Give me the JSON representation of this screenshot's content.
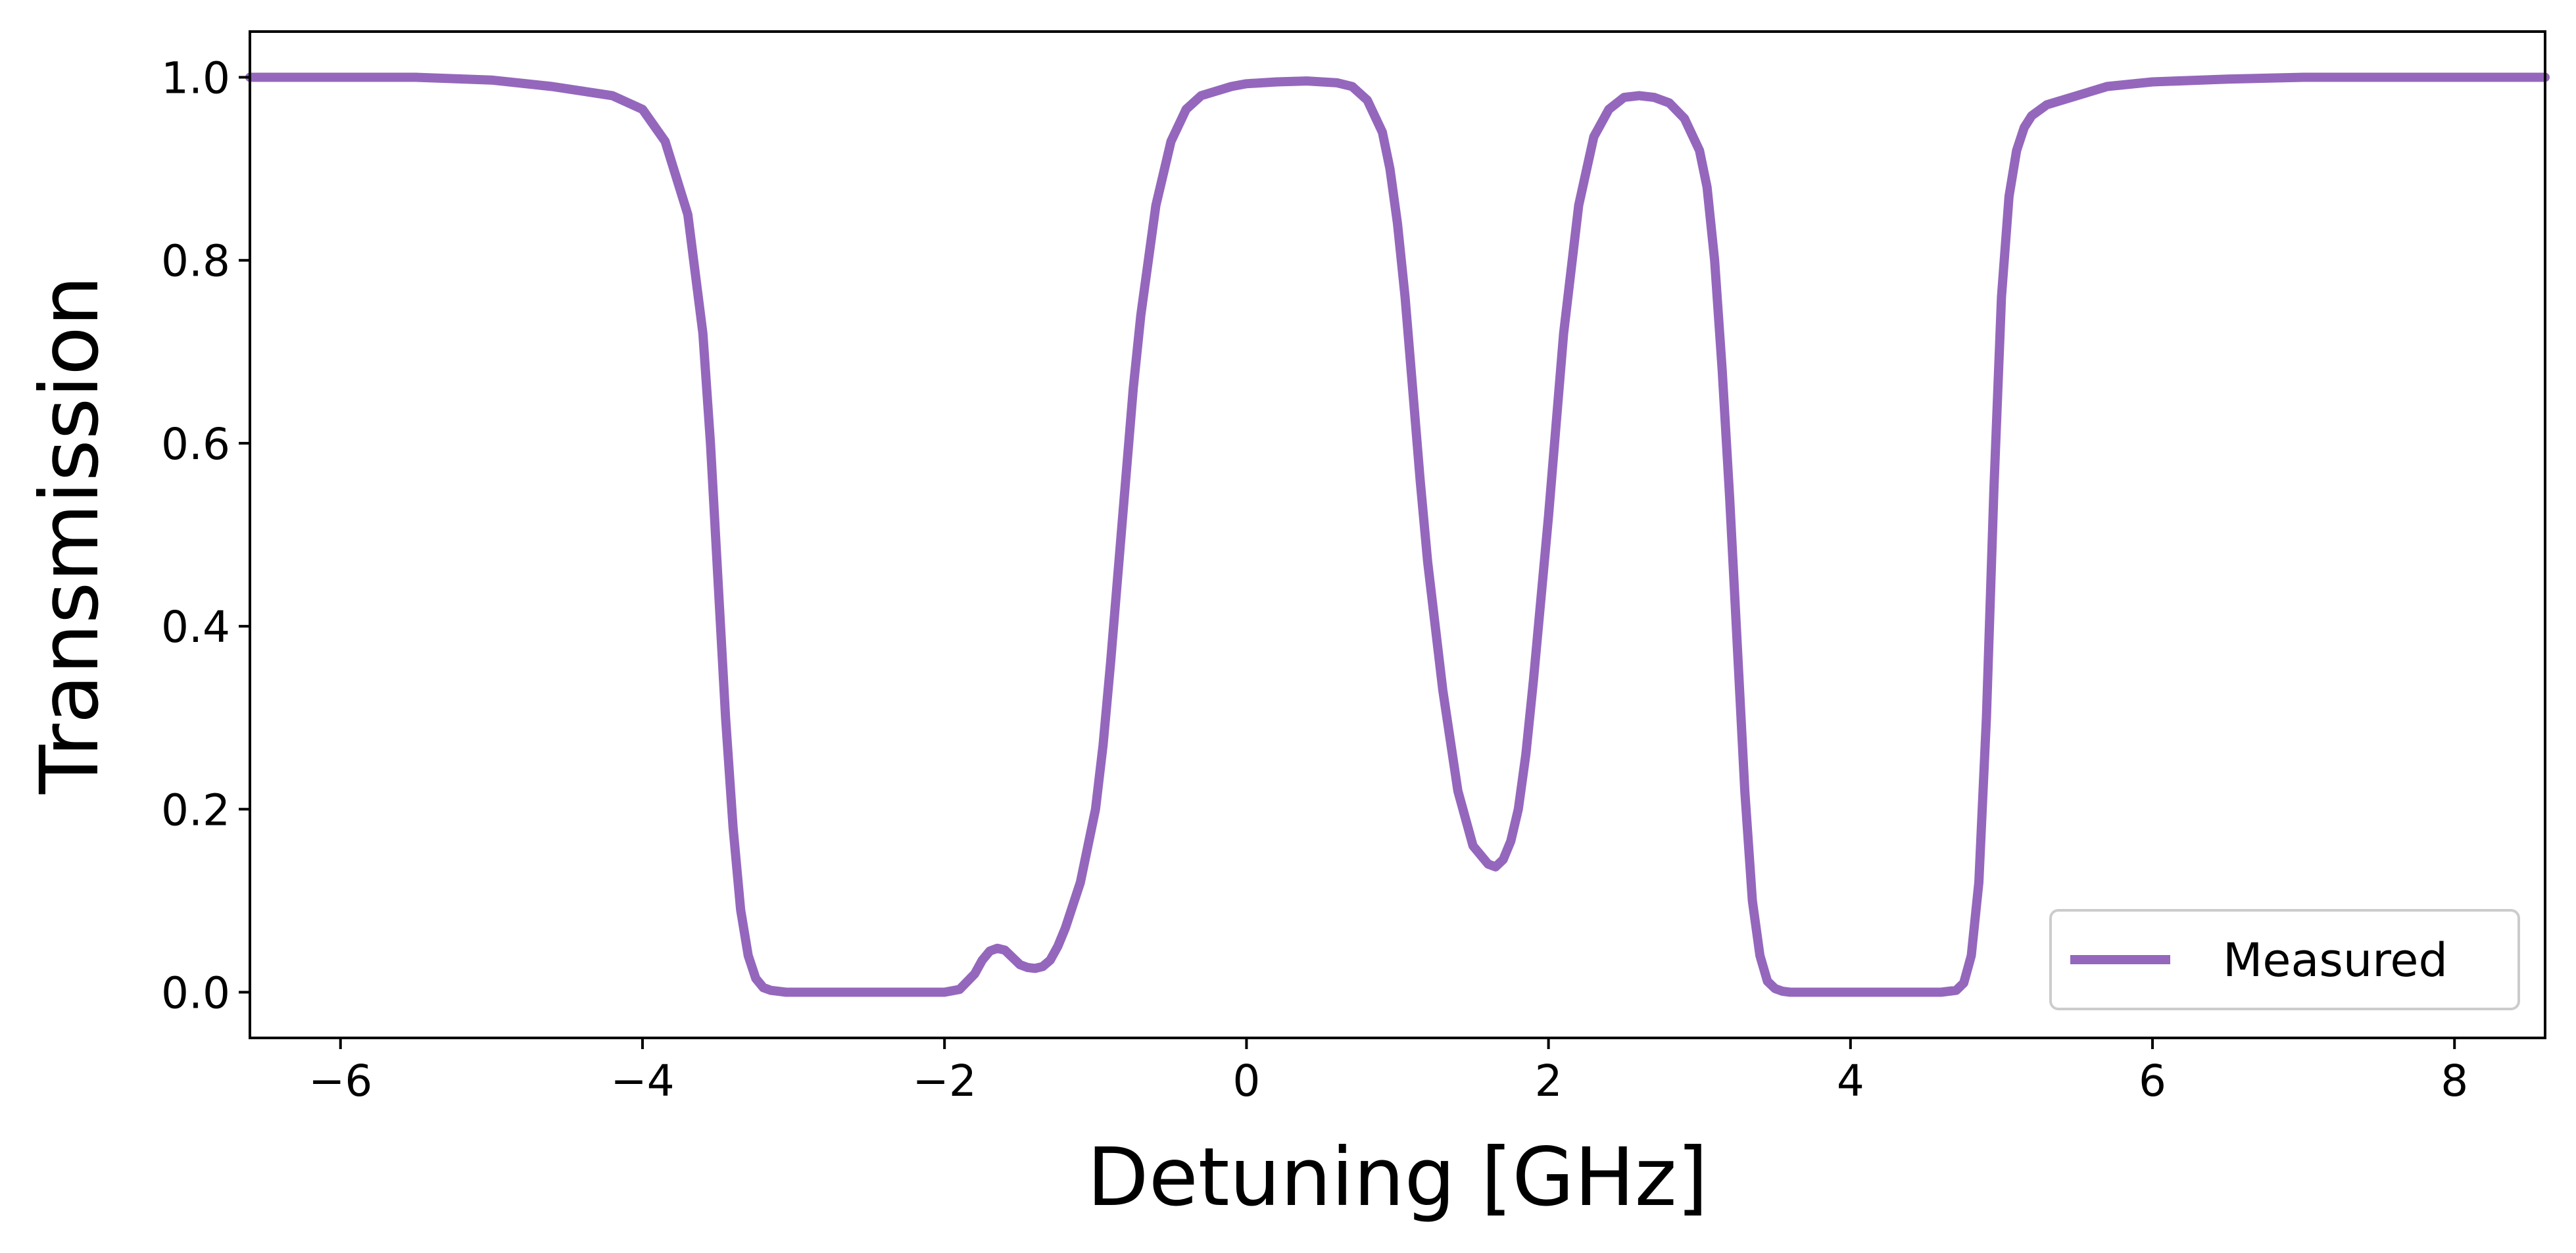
{
  "chart_data": {
    "type": "line",
    "title": "",
    "xlabel": "Detuning [GHz]",
    "ylabel": "Transmission",
    "xlim": [
      -6.6,
      8.6
    ],
    "ylim": [
      -0.05,
      1.05
    ],
    "xticks": [
      -6,
      -4,
      -2,
      0,
      2,
      4,
      6,
      8
    ],
    "xtick_labels": [
      "−6",
      "−4",
      "−2",
      "0",
      "2",
      "4",
      "6",
      "8"
    ],
    "yticks": [
      0.0,
      0.2,
      0.4,
      0.6,
      0.8,
      1.0
    ],
    "ytick_labels": [
      "0.0",
      "0.2",
      "0.4",
      "0.6",
      "0.8",
      "1.0"
    ],
    "grid": false,
    "legend": {
      "position": "lower-right",
      "entries": [
        "Measured"
      ]
    },
    "series": [
      {
        "name": "Measured",
        "color": "#9467bd",
        "x": [
          -6.6,
          -6.0,
          -5.5,
          -5.0,
          -4.6,
          -4.2,
          -4.0,
          -3.85,
          -3.7,
          -3.6,
          -3.55,
          -3.5,
          -3.45,
          -3.4,
          -3.35,
          -3.3,
          -3.25,
          -3.2,
          -3.15,
          -3.1,
          -3.05,
          -3.0,
          -2.5,
          -2.0,
          -1.9,
          -1.8,
          -1.75,
          -1.7,
          -1.65,
          -1.6,
          -1.55,
          -1.5,
          -1.45,
          -1.4,
          -1.35,
          -1.3,
          -1.25,
          -1.2,
          -1.1,
          -1.0,
          -0.95,
          -0.9,
          -0.85,
          -0.8,
          -0.75,
          -0.7,
          -0.6,
          -0.5,
          -0.4,
          -0.3,
          -0.2,
          -0.1,
          0.0,
          0.2,
          0.4,
          0.6,
          0.7,
          0.8,
          0.9,
          0.95,
          1.0,
          1.05,
          1.1,
          1.15,
          1.2,
          1.3,
          1.4,
          1.5,
          1.6,
          1.65,
          1.7,
          1.75,
          1.8,
          1.85,
          1.9,
          2.0,
          2.1,
          2.2,
          2.3,
          2.4,
          2.5,
          2.6,
          2.7,
          2.8,
          2.9,
          3.0,
          3.05,
          3.1,
          3.15,
          3.2,
          3.25,
          3.3,
          3.35,
          3.4,
          3.45,
          3.5,
          3.55,
          3.6,
          3.65,
          3.7,
          4.0,
          4.3,
          4.6,
          4.7,
          4.75,
          4.8,
          4.85,
          4.9,
          4.95,
          5.0,
          5.05,
          5.1,
          5.15,
          5.2,
          5.3,
          5.5,
          5.7,
          6.0,
          6.5,
          7.0,
          7.5,
          8.0,
          8.6
        ],
        "y": [
          1.0,
          1.0,
          1.0,
          0.997,
          0.99,
          0.98,
          0.965,
          0.93,
          0.85,
          0.72,
          0.6,
          0.45,
          0.3,
          0.18,
          0.09,
          0.04,
          0.015,
          0.005,
          0.002,
          0.001,
          0.0,
          0.0,
          0.0,
          0.0,
          0.003,
          0.02,
          0.035,
          0.045,
          0.048,
          0.046,
          0.038,
          0.03,
          0.027,
          0.026,
          0.028,
          0.035,
          0.05,
          0.07,
          0.12,
          0.2,
          0.27,
          0.36,
          0.46,
          0.56,
          0.66,
          0.74,
          0.86,
          0.93,
          0.965,
          0.98,
          0.985,
          0.99,
          0.993,
          0.995,
          0.996,
          0.994,
          0.99,
          0.975,
          0.94,
          0.9,
          0.84,
          0.76,
          0.66,
          0.56,
          0.47,
          0.33,
          0.22,
          0.16,
          0.14,
          0.137,
          0.145,
          0.165,
          0.2,
          0.26,
          0.34,
          0.52,
          0.72,
          0.86,
          0.935,
          0.965,
          0.978,
          0.98,
          0.978,
          0.972,
          0.955,
          0.92,
          0.88,
          0.8,
          0.68,
          0.54,
          0.38,
          0.22,
          0.1,
          0.04,
          0.012,
          0.004,
          0.001,
          0.0,
          0.0,
          0.0,
          0.0,
          0.0,
          0.0,
          0.002,
          0.01,
          0.04,
          0.12,
          0.3,
          0.55,
          0.76,
          0.87,
          0.92,
          0.945,
          0.958,
          0.97,
          0.98,
          0.99,
          0.995,
          0.998,
          1.0,
          1.0,
          1.0,
          1.0
        ]
      }
    ]
  }
}
